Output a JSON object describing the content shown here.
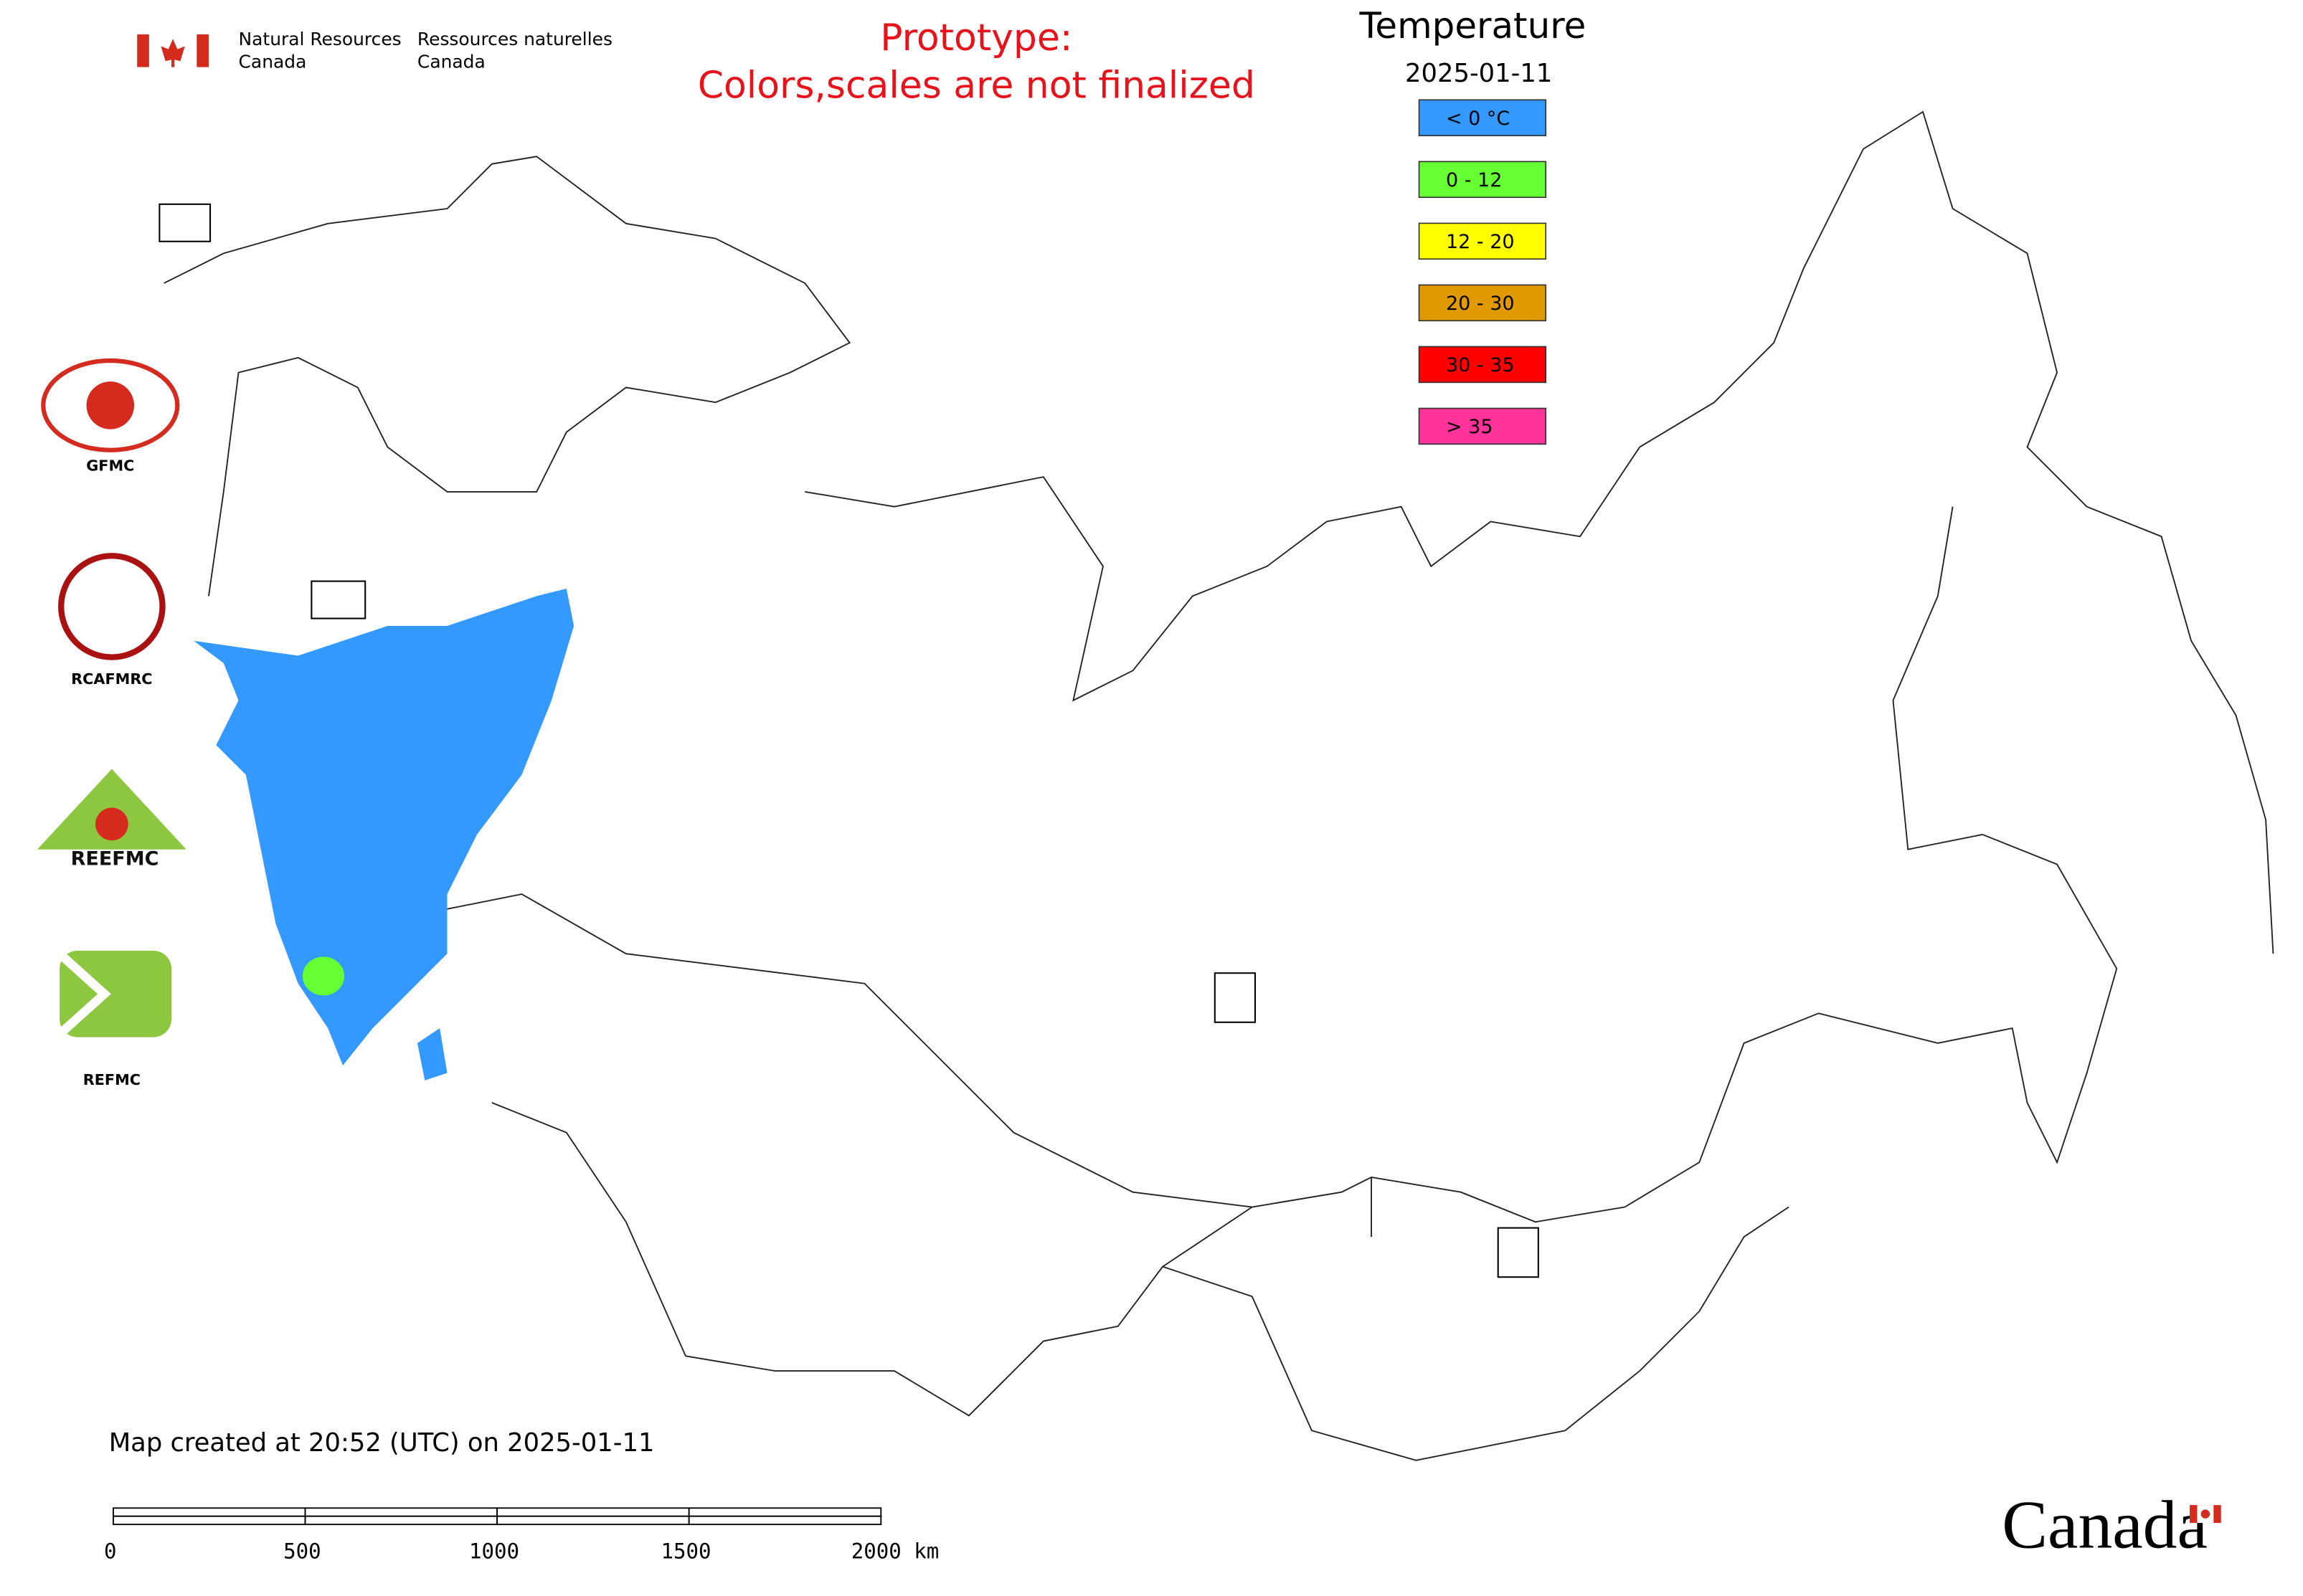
{
  "header": {
    "agency_en": [
      "Natural Resources",
      "Canada"
    ],
    "agency_fr": [
      "Ressources naturelles",
      "Canada"
    ]
  },
  "notice": [
    "Prototype:",
    "Colors,scales are not finalized"
  ],
  "legend": {
    "title": "Temperature",
    "date": "2025-01-11",
    "items": [
      {
        "label": "< 0 °C",
        "color": "#3399ff"
      },
      {
        "label": "0 - 12",
        "color": "#66ff33"
      },
      {
        "label": "12 - 20",
        "color": "#ffff00"
      },
      {
        "label": "20 - 30",
        "color": "#e09a00"
      },
      {
        "label": "30 - 35",
        "color": "#ff0000"
      },
      {
        "label": "> 35",
        "color": "#ff3399"
      }
    ]
  },
  "logos": [
    "GFMC",
    "RCAFMRC",
    "REEFMC",
    "REFMC"
  ],
  "footer": {
    "created": "Map created at 20:52 (UTC) on 2025-01-11",
    "scale_labels": [
      "0",
      "500",
      "1000",
      "1500",
      "2000 km"
    ],
    "wordmark": "Canada"
  }
}
